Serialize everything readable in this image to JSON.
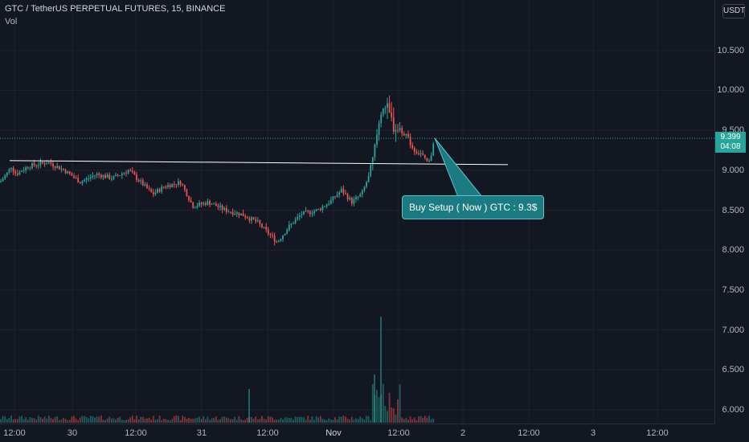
{
  "chart": {
    "title": "GTC / TetherUS PERPETUAL FUTURES, 15, BINANCE",
    "volume_label": "Vol",
    "currency": "USDT",
    "last_price": "9.399",
    "countdown": "04:08",
    "annotation": "Buy Setup ( Now ) GTC : 9.3$",
    "colors": {
      "up": "#26a69a",
      "down": "#ef5350",
      "background": "#131722",
      "trendline": "#ffffff",
      "callout": "#1a7c82"
    }
  },
  "chart_data": {
    "type": "candlestick",
    "price_ticks": [
      "10.500",
      "10.000",
      "9.500",
      "9.000",
      "8.500",
      "8.000",
      "7.500",
      "7.000",
      "6.500",
      "6.000"
    ],
    "time_ticks": [
      "12:00",
      "30",
      "12:00",
      "31",
      "12:00",
      "Nov",
      "12:00",
      "2",
      "12:00",
      "3",
      "12:00"
    ],
    "ylim": [
      5.9,
      10.8
    ],
    "price_path": [
      [
        0,
        8.85
      ],
      [
        8,
        8.95
      ],
      [
        14,
        9.05
      ],
      [
        20,
        8.95
      ],
      [
        35,
        9.05
      ],
      [
        60,
        9.1
      ],
      [
        80,
        9.0
      ],
      [
        100,
        8.85
      ],
      [
        120,
        8.95
      ],
      [
        140,
        8.9
      ],
      [
        160,
        9.0
      ],
      [
        180,
        8.8
      ],
      [
        190,
        8.7
      ],
      [
        205,
        8.8
      ],
      [
        225,
        8.85
      ],
      [
        240,
        8.55
      ],
      [
        260,
        8.6
      ],
      [
        280,
        8.5
      ],
      [
        300,
        8.45
      ],
      [
        320,
        8.35
      ],
      [
        335,
        8.2
      ],
      [
        345,
        8.1
      ],
      [
        360,
        8.3
      ],
      [
        375,
        8.45
      ],
      [
        395,
        8.5
      ],
      [
        410,
        8.6
      ],
      [
        425,
        8.75
      ],
      [
        438,
        8.6
      ],
      [
        450,
        8.7
      ],
      [
        462,
        9.0
      ],
      [
        470,
        9.5
      ],
      [
        476,
        9.85
      ],
      [
        482,
        9.75
      ],
      [
        490,
        9.55
      ],
      [
        505,
        9.45
      ],
      [
        515,
        9.25
      ],
      [
        525,
        9.2
      ],
      [
        530,
        9.1
      ],
      [
        535,
        9.1
      ],
      [
        540,
        9.4
      ]
    ],
    "trendline": {
      "start": [
        12,
        9.12
      ],
      "end": [
        632,
        9.07
      ]
    },
    "volume_spikes": [
      {
        "x": 474,
        "value": "high"
      },
      {
        "x": 466,
        "value": "medium"
      },
      {
        "x": 310,
        "value": "low"
      }
    ]
  }
}
